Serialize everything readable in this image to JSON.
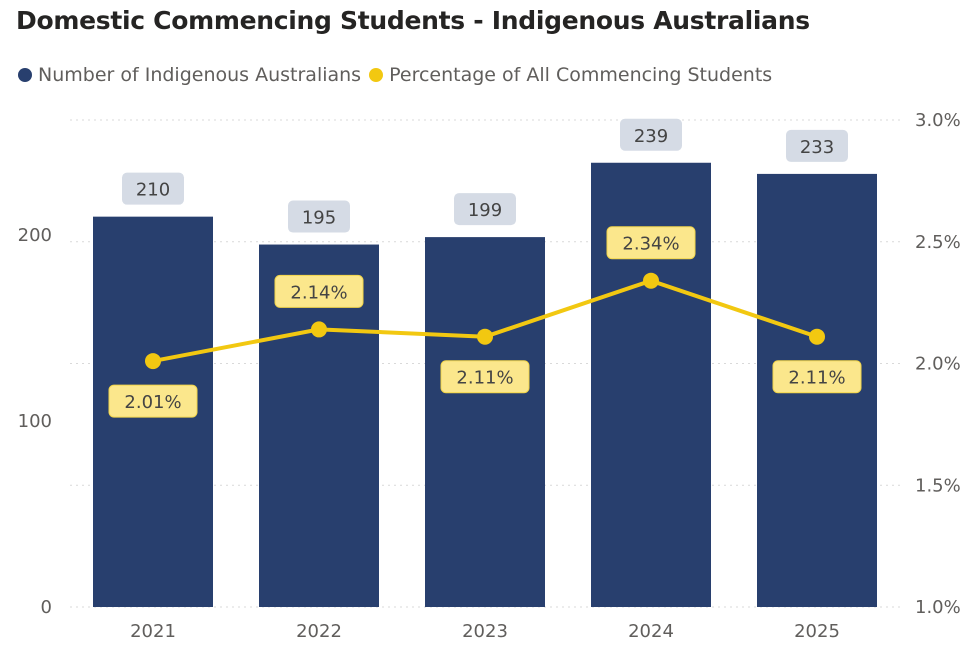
{
  "chart_data": {
    "type": "bar+line",
    "title": "Domestic Commencing Students - Indigenous Australians",
    "categories": [
      "2021",
      "2022",
      "2023",
      "2024",
      "2025"
    ],
    "series": [
      {
        "name": "Number of Indigenous Australians",
        "type": "bar",
        "axis": "left",
        "color": "#283f6e",
        "values": [
          210,
          195,
          199,
          239,
          233
        ],
        "labels": [
          "210",
          "195",
          "199",
          "239",
          "233"
        ]
      },
      {
        "name": "Percentage of All Commencing Students",
        "type": "line",
        "axis": "right",
        "color": "#f2c811",
        "values": [
          2.01,
          2.14,
          2.11,
          2.34,
          2.11
        ],
        "labels": [
          "2.01%",
          "2.14%",
          "2.11%",
          "2.34%",
          "2.11%"
        ],
        "label_positions": [
          "below",
          "above",
          "below",
          "above",
          "below"
        ]
      }
    ],
    "left_axis": {
      "ylim": [
        0,
        262
      ],
      "ticks": [
        0,
        100,
        200
      ],
      "tick_labels": [
        "0",
        "100",
        "200"
      ]
    },
    "right_axis": {
      "ylim": [
        1.0,
        3.0
      ],
      "ticks": [
        1.0,
        1.5,
        2.0,
        2.5,
        3.0
      ],
      "tick_labels": [
        "1.0%",
        "1.5%",
        "2.0%",
        "2.5%",
        "3.0%"
      ]
    },
    "grid": true,
    "legend_position": "top-left"
  }
}
